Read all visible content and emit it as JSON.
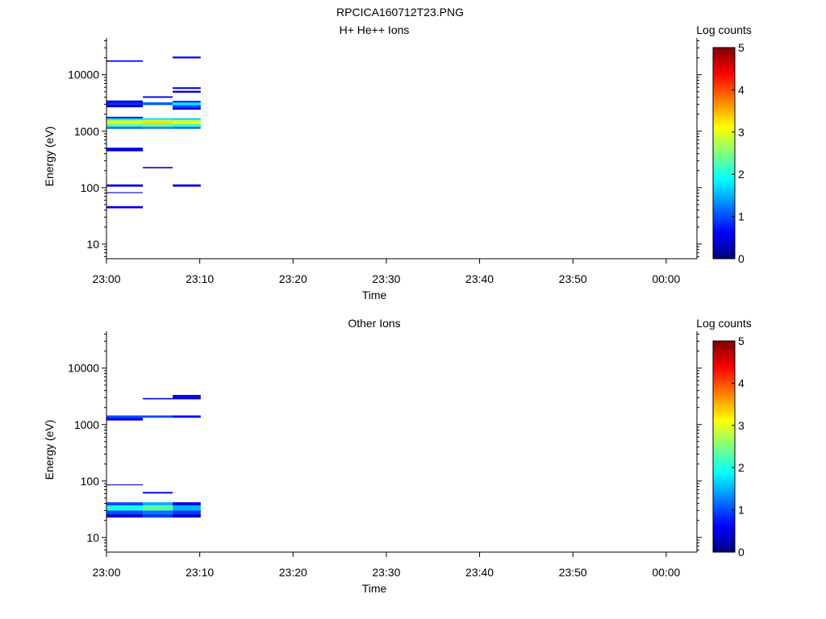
{
  "figure_title": "RPCICA160712T23.PNG",
  "colorbar": {
    "label": "Log counts",
    "ticks": [
      "0",
      "1",
      "2",
      "3",
      "4",
      "5"
    ],
    "min": 0,
    "max": 5,
    "colormap": [
      "#00007f",
      "#0000ff",
      "#007fff",
      "#00ffff",
      "#7fff7f",
      "#ffff00",
      "#ff7f00",
      "#ff0000",
      "#7f0000"
    ]
  },
  "chart_data": [
    {
      "type": "heatmap",
      "title": "H+ He++ Ions",
      "xlabel": "Time",
      "ylabel": "Energy (eV)",
      "x_ticks": [
        "23:00",
        "23:10",
        "23:20",
        "23:30",
        "23:40",
        "23:50",
        "00:00"
      ],
      "x_tick_minutes": [
        0,
        10,
        20,
        30,
        40,
        50,
        60
      ],
      "xlim_minutes": [
        0,
        63.3
      ],
      "y_scale": "log",
      "ylim": [
        5.5,
        45000
      ],
      "y_ticks": [
        "10",
        "100",
        "1000",
        "10000"
      ],
      "y_tick_values": [
        10,
        100,
        1000,
        10000
      ],
      "cells": [
        {
          "t0": 0,
          "t1": 3.9,
          "e0": 17000,
          "e1": 18000,
          "value": 0.6
        },
        {
          "t0": 0,
          "t1": 3.9,
          "e0": 3200,
          "e1": 3500,
          "value": 0.5
        },
        {
          "t0": 0,
          "t1": 3.9,
          "e0": 2950,
          "e1": 3200,
          "value": 0.8
        },
        {
          "t0": 0,
          "t1": 3.9,
          "e0": 2650,
          "e1": 2950,
          "value": 0.4
        },
        {
          "t0": 0,
          "t1": 3.9,
          "e0": 1700,
          "e1": 1800,
          "value": 0.6
        },
        {
          "t0": 0,
          "t1": 3.9,
          "e0": 1600,
          "e1": 1700,
          "value": 1.6
        },
        {
          "t0": 0,
          "t1": 3.9,
          "e0": 1500,
          "e1": 1600,
          "value": 2.6
        },
        {
          "t0": 0,
          "t1": 3.9,
          "e0": 1350,
          "e1": 1500,
          "value": 3.2
        },
        {
          "t0": 0,
          "t1": 3.9,
          "e0": 1200,
          "e1": 1350,
          "value": 2.3
        },
        {
          "t0": 0,
          "t1": 3.9,
          "e0": 1100,
          "e1": 1200,
          "value": 1.2
        },
        {
          "t0": 0,
          "t1": 3.9,
          "e0": 440,
          "e1": 510,
          "value": 0.5
        },
        {
          "t0": 0,
          "t1": 3.9,
          "e0": 104,
          "e1": 114,
          "value": 0.5
        },
        {
          "t0": 0,
          "t1": 3.9,
          "e0": 80,
          "e1": 83,
          "value": 0.4
        },
        {
          "t0": 0,
          "t1": 3.9,
          "e0": 43,
          "e1": 47,
          "value": 0.5
        },
        {
          "t0": 3.9,
          "t1": 7.1,
          "e0": 3900,
          "e1": 4150,
          "value": 0.5
        },
        {
          "t0": 3.9,
          "t1": 7.1,
          "e0": 2900,
          "e1": 3250,
          "value": 1.1
        },
        {
          "t0": 3.9,
          "t1": 7.1,
          "e0": 1600,
          "e1": 1700,
          "value": 1.7
        },
        {
          "t0": 3.9,
          "t1": 7.1,
          "e0": 1500,
          "e1": 1600,
          "value": 2.8
        },
        {
          "t0": 3.9,
          "t1": 7.1,
          "e0": 1350,
          "e1": 1500,
          "value": 3.3
        },
        {
          "t0": 3.9,
          "t1": 7.1,
          "e0": 1200,
          "e1": 1350,
          "value": 2.4
        },
        {
          "t0": 3.9,
          "t1": 7.1,
          "e0": 1100,
          "e1": 1200,
          "value": 1.3
        },
        {
          "t0": 3.9,
          "t1": 7.1,
          "e0": 220,
          "e1": 232,
          "value": 0.4
        },
        {
          "t0": 7.1,
          "t1": 10.1,
          "e0": 19500,
          "e1": 21000,
          "value": 0.6
        },
        {
          "t0": 7.1,
          "t1": 10.1,
          "e0": 5600,
          "e1": 6000,
          "value": 0.5
        },
        {
          "t0": 7.1,
          "t1": 10.1,
          "e0": 4800,
          "e1": 5200,
          "value": 0.5
        },
        {
          "t0": 7.1,
          "t1": 10.1,
          "e0": 3200,
          "e1": 3450,
          "value": 0.9
        },
        {
          "t0": 7.1,
          "t1": 10.1,
          "e0": 2900,
          "e1": 3200,
          "value": 1.8
        },
        {
          "t0": 7.1,
          "t1": 10.1,
          "e0": 2650,
          "e1": 2900,
          "value": 1.0
        },
        {
          "t0": 7.1,
          "t1": 10.1,
          "e0": 2400,
          "e1": 2650,
          "value": 0.5
        },
        {
          "t0": 7.1,
          "t1": 10.1,
          "e0": 1600,
          "e1": 1700,
          "value": 1.6
        },
        {
          "t0": 7.1,
          "t1": 10.1,
          "e0": 1500,
          "e1": 1600,
          "value": 2.7
        },
        {
          "t0": 7.1,
          "t1": 10.1,
          "e0": 1350,
          "e1": 1500,
          "value": 3.1
        },
        {
          "t0": 7.1,
          "t1": 10.1,
          "e0": 1200,
          "e1": 1350,
          "value": 2.2
        },
        {
          "t0": 7.1,
          "t1": 10.1,
          "e0": 1100,
          "e1": 1200,
          "value": 1.2
        },
        {
          "t0": 7.1,
          "t1": 10.1,
          "e0": 104,
          "e1": 114,
          "value": 0.5
        }
      ]
    },
    {
      "type": "heatmap",
      "title": "Other Ions",
      "xlabel": "Time",
      "ylabel": "Energy (eV)",
      "x_ticks": [
        "23:00",
        "23:10",
        "23:20",
        "23:30",
        "23:40",
        "23:50",
        "00:00"
      ],
      "x_tick_minutes": [
        0,
        10,
        20,
        30,
        40,
        50,
        60
      ],
      "xlim_minutes": [
        0,
        63.3
      ],
      "y_scale": "log",
      "ylim": [
        5.5,
        45000
      ],
      "y_ticks": [
        "10",
        "100",
        "1000",
        "10000"
      ],
      "y_tick_values": [
        10,
        100,
        1000,
        10000
      ],
      "cells": [
        {
          "t0": 0,
          "t1": 3.9,
          "e0": 1320,
          "e1": 1450,
          "value": 1.0
        },
        {
          "t0": 0,
          "t1": 3.9,
          "e0": 1180,
          "e1": 1320,
          "value": 0.5
        },
        {
          "t0": 0,
          "t1": 3.9,
          "e0": 84,
          "e1": 87,
          "value": 0.4
        },
        {
          "t0": 0,
          "t1": 3.9,
          "e0": 37,
          "e1": 42,
          "value": 1.0
        },
        {
          "t0": 0,
          "t1": 3.9,
          "e0": 30,
          "e1": 37,
          "value": 2.0
        },
        {
          "t0": 0,
          "t1": 3.9,
          "e0": 26,
          "e1": 30,
          "value": 1.0
        },
        {
          "t0": 0,
          "t1": 3.9,
          "e0": 22.5,
          "e1": 26,
          "value": 0.5
        },
        {
          "t0": 3.9,
          "t1": 7.1,
          "e0": 2800,
          "e1": 2950,
          "value": 0.4
        },
        {
          "t0": 3.9,
          "t1": 7.1,
          "e0": 1320,
          "e1": 1450,
          "value": 1.0
        },
        {
          "t0": 3.9,
          "t1": 7.1,
          "e0": 60,
          "e1": 64,
          "value": 0.5
        },
        {
          "t0": 3.9,
          "t1": 7.1,
          "e0": 37,
          "e1": 42,
          "value": 1.5
        },
        {
          "t0": 3.9,
          "t1": 7.1,
          "e0": 30,
          "e1": 37,
          "value": 2.3
        },
        {
          "t0": 3.9,
          "t1": 7.1,
          "e0": 26,
          "e1": 30,
          "value": 1.2
        },
        {
          "t0": 3.9,
          "t1": 7.1,
          "e0": 22.5,
          "e1": 26,
          "value": 0.9
        },
        {
          "t0": 7.1,
          "t1": 10.1,
          "e0": 3100,
          "e1": 3350,
          "value": 0.5
        },
        {
          "t0": 7.1,
          "t1": 10.1,
          "e0": 2800,
          "e1": 3100,
          "value": 0.4
        },
        {
          "t0": 7.1,
          "t1": 10.1,
          "e0": 1320,
          "e1": 1450,
          "value": 0.6
        },
        {
          "t0": 7.1,
          "t1": 10.1,
          "e0": 37,
          "e1": 42,
          "value": 0.5
        },
        {
          "t0": 7.1,
          "t1": 10.1,
          "e0": 30,
          "e1": 37,
          "value": 1.5
        },
        {
          "t0": 7.1,
          "t1": 10.1,
          "e0": 26,
          "e1": 30,
          "value": 0.9
        },
        {
          "t0": 7.1,
          "t1": 10.1,
          "e0": 22.5,
          "e1": 26,
          "value": 0.4
        }
      ]
    }
  ]
}
